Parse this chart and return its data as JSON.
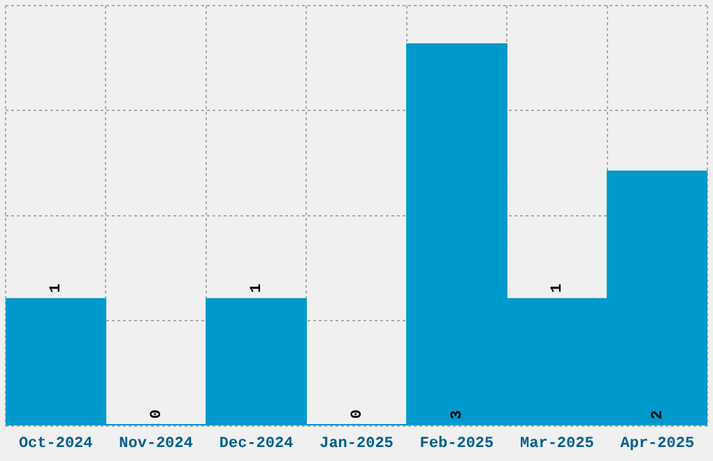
{
  "chart_data": {
    "type": "bar",
    "categories": [
      "Oct-2024",
      "Nov-2024",
      "Dec-2024",
      "Jan-2025",
      "Feb-2025",
      "Mar-2025",
      "Apr-2025"
    ],
    "values": [
      1,
      0,
      1,
      0,
      3,
      1,
      2
    ],
    "color": "#0099cc",
    "ylim": [
      0,
      3.3
    ],
    "grid": true,
    "data_labels": true,
    "tick_labels": "x"
  }
}
